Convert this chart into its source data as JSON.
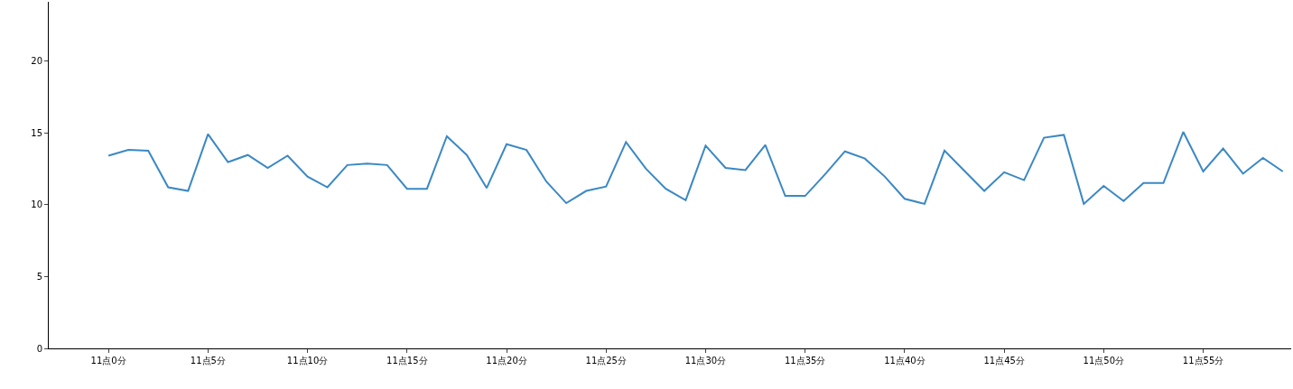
{
  "chart_data": {
    "type": "line",
    "categories": [
      "11点0分",
      null,
      null,
      null,
      null,
      "11点5分",
      null,
      null,
      null,
      null,
      "11点10分",
      null,
      null,
      null,
      null,
      "11点15分",
      null,
      null,
      null,
      null,
      "11点20分",
      null,
      null,
      null,
      null,
      "11点25分",
      null,
      null,
      null,
      null,
      "11点30分",
      null,
      null,
      null,
      null,
      "11点35分",
      null,
      null,
      null,
      null,
      "11点40分",
      null,
      null,
      null,
      null,
      "11点45分",
      null,
      null,
      null,
      null,
      "11点50分",
      null,
      null,
      null,
      null,
      "11点55分",
      null,
      null,
      null,
      null
    ],
    "series": [
      {
        "color": "#3a88c4",
        "values": [
          13.4,
          13.8,
          13.75,
          11.2,
          10.95,
          14.9,
          12.95,
          13.45,
          12.55,
          13.4,
          11.95,
          11.2,
          12.75,
          12.85,
          12.75,
          11.1,
          11.1,
          14.75,
          13.45,
          11.15,
          14.2,
          13.8,
          11.6,
          10.1,
          10.95,
          11.25,
          14.35,
          12.5,
          11.1,
          10.3,
          14.1,
          12.55,
          12.4,
          14.15,
          10.6,
          10.6,
          12.1,
          13.7,
          13.2,
          11.95,
          10.4,
          10.05,
          13.75,
          12.35,
          10.95,
          12.25,
          11.7,
          14.65,
          14.85,
          10.05,
          11.3,
          10.25,
          11.5,
          11.5,
          15.05,
          12.3,
          13.9,
          12.15,
          13.25,
          12.3
        ]
      }
    ],
    "ylim": [
      0,
      24.1
    ],
    "yticks": [
      0,
      5,
      10,
      15,
      20
    ],
    "marker": "none",
    "line_style": "solid"
  }
}
